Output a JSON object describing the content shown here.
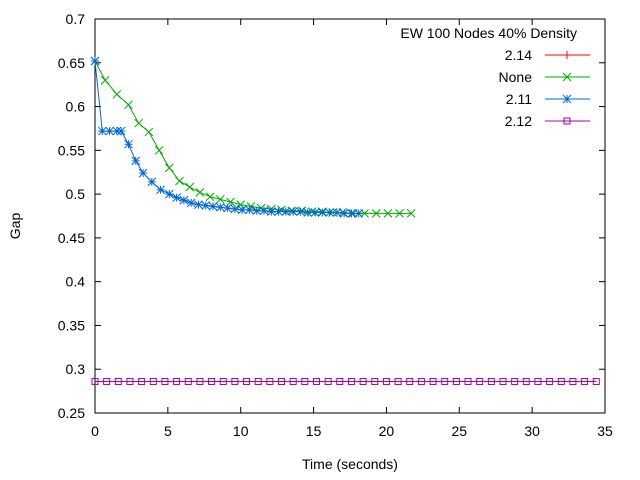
{
  "chart_data": {
    "type": "line",
    "title": "EW 100 Nodes 40% Density",
    "xlabel": "Time (seconds)",
    "ylabel": "Gap",
    "xlim": [
      0,
      35
    ],
    "ylim": [
      0.25,
      0.7
    ],
    "x_ticks": [
      "0",
      "5",
      "10",
      "15",
      "20",
      "25",
      "30",
      "35"
    ],
    "y_ticks": [
      "0.25",
      "0.3",
      "0.35",
      "0.4",
      "0.45",
      "0.5",
      "0.55",
      "0.6",
      "0.65",
      "0.7"
    ],
    "grid": false,
    "legend_position": "top-right",
    "series": [
      {
        "name": "2.14",
        "color": "#ff0000",
        "marker": "plus",
        "x": [],
        "y": []
      },
      {
        "name": "None",
        "color": "#00aa00",
        "marker": "x",
        "x": [
          0,
          0.7,
          1.5,
          2.3,
          3,
          3.7,
          4.4,
          5.1,
          5.8,
          6.5,
          7.2,
          7.9,
          8.6,
          9.3,
          10,
          10.7,
          11.4,
          12.1,
          12.8,
          13.5,
          14.2,
          14.9,
          15.6,
          16.3,
          17,
          17.7,
          18.5,
          19.3,
          20.1,
          20.9,
          21.7
        ],
        "y": [
          0.652,
          0.63,
          0.614,
          0.602,
          0.581,
          0.571,
          0.55,
          0.53,
          0.515,
          0.508,
          0.502,
          0.497,
          0.494,
          0.491,
          0.488,
          0.486,
          0.484,
          0.483,
          0.482,
          0.481,
          0.481,
          0.48,
          0.48,
          0.479,
          0.479,
          0.478,
          0.478,
          0.478,
          0.478,
          0.478,
          0.478
        ]
      },
      {
        "name": "2.11",
        "color": "#0066dd",
        "marker": "star",
        "x": [
          0,
          0.5,
          1,
          1.5,
          1.8,
          2.3,
          2.8,
          3.3,
          3.9,
          4.5,
          5.1,
          5.6,
          6.1,
          6.6,
          7.1,
          7.6,
          8.1,
          8.6,
          9.1,
          9.6,
          10.1,
          10.6,
          11.1,
          11.6,
          12.1,
          12.6,
          13.1,
          13.6,
          14.1,
          14.6,
          15.1,
          15.6,
          16.1,
          16.6,
          17.1,
          17.6,
          18.1
        ],
        "y": [
          0.652,
          0.572,
          0.572,
          0.572,
          0.572,
          0.557,
          0.538,
          0.524,
          0.514,
          0.505,
          0.5,
          0.496,
          0.493,
          0.49,
          0.488,
          0.487,
          0.486,
          0.485,
          0.484,
          0.483,
          0.482,
          0.482,
          0.481,
          0.481,
          0.48,
          0.48,
          0.48,
          0.48,
          0.48,
          0.479,
          0.479,
          0.479,
          0.479,
          0.479,
          0.478,
          0.478,
          0.478
        ]
      },
      {
        "name": "2.12",
        "color": "#aa00aa",
        "marker": "square",
        "x": [
          0,
          0.8,
          1.6,
          2.4,
          3.2,
          4,
          4.8,
          5.6,
          6.4,
          7.2,
          8,
          8.8,
          9.6,
          10.4,
          11.2,
          12,
          12.8,
          13.6,
          14.4,
          15.2,
          16,
          16.8,
          17.6,
          18.4,
          19.2,
          20,
          20.8,
          21.6,
          22.4,
          23.2,
          24,
          24.8,
          25.6,
          26.4,
          27.2,
          28,
          28.8,
          29.6,
          30.4,
          31.2,
          32,
          32.8,
          33.6,
          34.4
        ],
        "y": [
          0.286,
          0.286,
          0.286,
          0.286,
          0.286,
          0.286,
          0.286,
          0.286,
          0.286,
          0.286,
          0.286,
          0.286,
          0.286,
          0.286,
          0.286,
          0.286,
          0.286,
          0.286,
          0.286,
          0.286,
          0.286,
          0.286,
          0.286,
          0.286,
          0.286,
          0.286,
          0.286,
          0.286,
          0.286,
          0.286,
          0.286,
          0.286,
          0.286,
          0.286,
          0.286,
          0.286,
          0.286,
          0.286,
          0.286,
          0.286,
          0.286,
          0.286,
          0.286,
          0.286
        ]
      }
    ]
  }
}
